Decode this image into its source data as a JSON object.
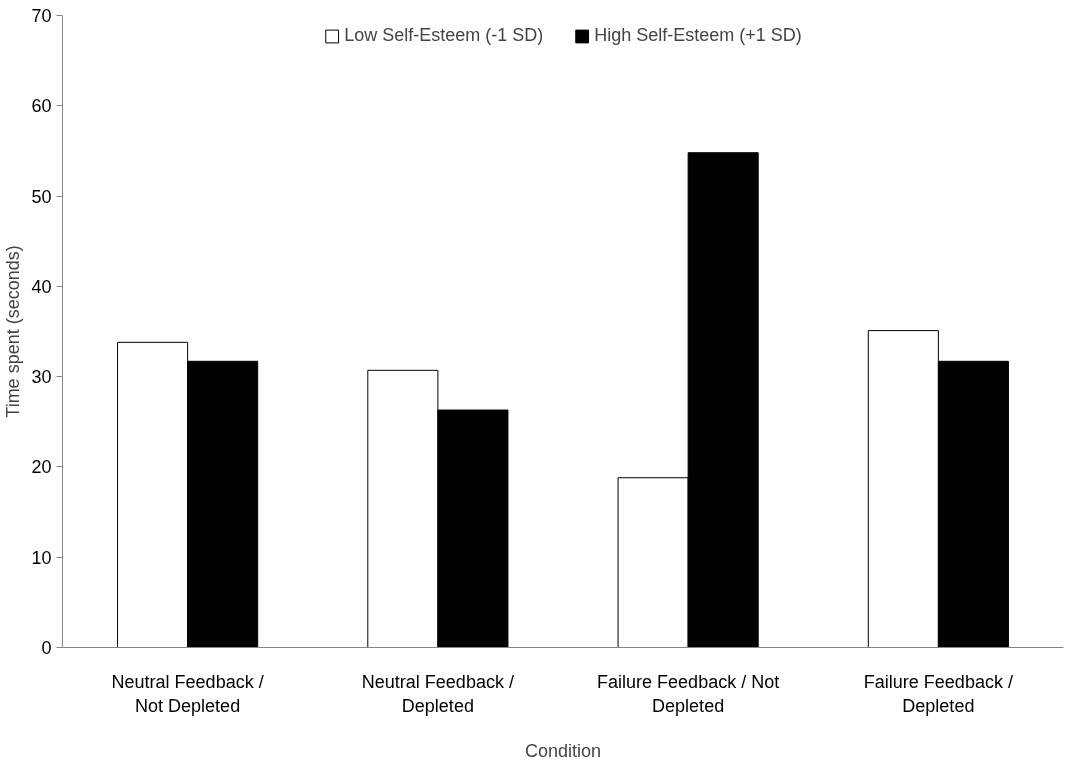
{
  "chart_data": {
    "type": "bar",
    "xlabel": "Condition",
    "ylabel": "Time spent (seconds)",
    "categories": [
      "Neutral Feedback /\nNot Depleted",
      "Neutral Feedback /\nDepleted",
      "Failure Feedback / Not\nDepleted",
      "Failure Feedback /\nDepleted"
    ],
    "series": [
      {
        "name": "Low Self-Esteem (-1 SD)",
        "color": "#ffffff",
        "values": [
          33.8,
          30.7,
          18.8,
          35.1
        ]
      },
      {
        "name": "High Self-Esteem (+1 SD)",
        "color": "#000000",
        "values": [
          31.7,
          26.3,
          54.8,
          31.7
        ]
      }
    ],
    "ylim": [
      0,
      70
    ],
    "yticks": [
      0,
      10,
      20,
      30,
      40,
      50,
      60,
      70
    ],
    "grid": false,
    "legend": "top"
  }
}
